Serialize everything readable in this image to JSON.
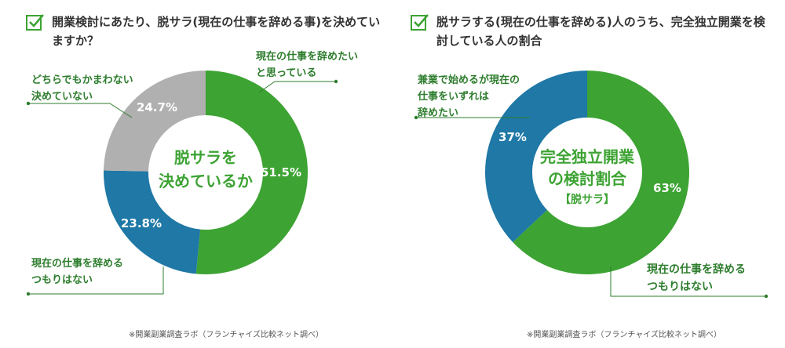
{
  "colors": {
    "green": "#3da333",
    "blue": "#1f78a6",
    "gray": "#b0b0b0",
    "label_green": "#2e7d2e",
    "check_green": "#3da333"
  },
  "left": {
    "title": "開業検討にあたり、脱サラ(現在の仕事を辞める事)を決めていますか？",
    "center_line1": "脱サラを",
    "center_line2": "決めているか",
    "source": "※開業副業調査ラボ（フランチャイズ比較ネット調べ）",
    "callouts": {
      "quit": [
        "現在の仕事を辞めたい",
        "と思っている"
      ],
      "undecided": [
        "どちらでもかまわない",
        "決めていない"
      ],
      "stay": [
        "現在の仕事を辞める",
        "つもりはない"
      ]
    }
  },
  "right": {
    "title": "脱サラする(現在の仕事を辞める)人のうち、完全独立開業を検討している人の割合",
    "center_line1": "完全独立開業",
    "center_line2": "の検討割合",
    "center_line3": "【脱サラ】",
    "source": "※開業副業調査ラボ（フランチャイズ比較ネット調べ）",
    "callouts": {
      "side": [
        "兼業で始めるが現在の",
        "仕事をいずれは",
        "辞めたい"
      ],
      "stay": [
        "現在の仕事を辞める",
        "つもりはない"
      ]
    }
  },
  "chart_data": [
    {
      "type": "pie",
      "title": "開業検討にあたり、脱サラ(現在の仕事を辞める事)を決めていますか？",
      "categories": [
        "現在の仕事を辞めたいと思っている",
        "現在の仕事を辞めるつもりはない",
        "どちらでもかまわない決めていない"
      ],
      "values": [
        51.5,
        23.8,
        24.7
      ],
      "value_labels": [
        "51.5%",
        "23.8%",
        "24.7%"
      ],
      "colors": [
        "#3da333",
        "#1f78a6",
        "#b0b0b0"
      ]
    },
    {
      "type": "pie",
      "title": "脱サラする(現在の仕事を辞める)人のうち、完全独立開業を検討している人の割合",
      "categories": [
        "現在の仕事を辞めるつもりはない",
        "兼業で始めるが現在の仕事をいずれは辞めたい"
      ],
      "values": [
        63,
        37
      ],
      "value_labels": [
        "63%",
        "37%"
      ],
      "colors": [
        "#3da333",
        "#1f78a6"
      ]
    }
  ]
}
